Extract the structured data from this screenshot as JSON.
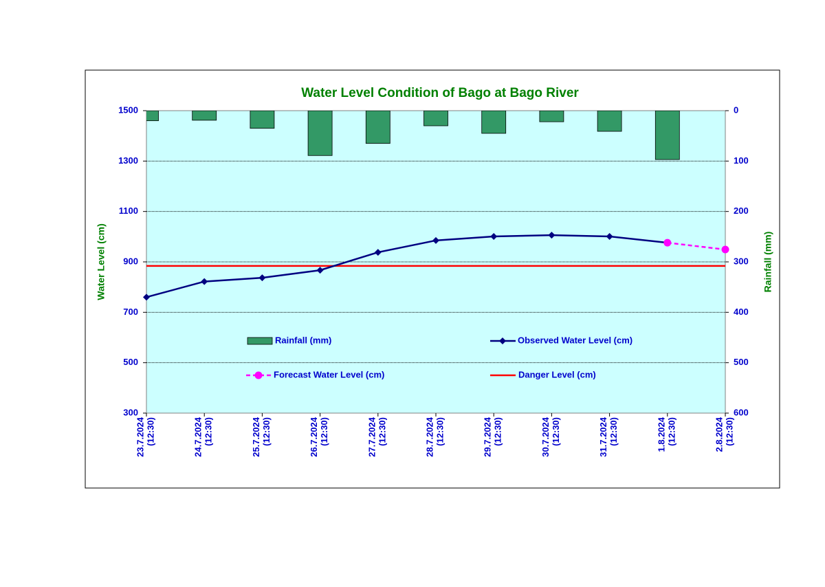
{
  "chart_data": {
    "type": "line_bar_combo",
    "title": "Water Level Condition of Bago at Bago River",
    "y_label": "Water Level (cm)",
    "y2_label": "Rainfall (mm)",
    "categories": [
      "23.7.2024\n(12:30)",
      "24.7.2024\n(12:30)",
      "25.7.2024\n(12:30)",
      "26.7.2024\n(12:30)",
      "27.7.2024\n(12:30)",
      "28.7.2024\n(12:30)",
      "29.7.2024\n(12:30)",
      "30.7.2024\n(12:30)",
      "31.7.2024\n(12:30)",
      "1.8.2024\n(12:30)",
      "2.8.2024\n(12:30)"
    ],
    "ylim": [
      300,
      1500
    ],
    "yticks": [
      300,
      500,
      700,
      900,
      1100,
      1300,
      1500
    ],
    "y2lim": [
      600,
      0
    ],
    "y2ticks": [
      0,
      100,
      200,
      300,
      400,
      500,
      600
    ],
    "grid": true,
    "series": [
      {
        "name": "Rainfall (mm)",
        "kind": "bar",
        "axis": "y2",
        "color": "#339966",
        "values": [
          20,
          19,
          35,
          89,
          65,
          30,
          45,
          22,
          41,
          97,
          null
        ]
      },
      {
        "name": "Observed Water Level (cm)",
        "kind": "line",
        "color": "#000080",
        "values": [
          760,
          822,
          837,
          867,
          938,
          985,
          1001,
          1006,
          1001,
          976,
          null
        ]
      },
      {
        "name": "Forecast Water Level (cm)",
        "kind": "dashed",
        "color": "#ff00ff",
        "values": [
          null,
          null,
          null,
          null,
          null,
          null,
          null,
          null,
          null,
          976,
          949
        ]
      }
    ],
    "danger_level": {
      "name": "Danger Level (cm)",
      "color": "#ff0000",
      "value": 884
    }
  }
}
